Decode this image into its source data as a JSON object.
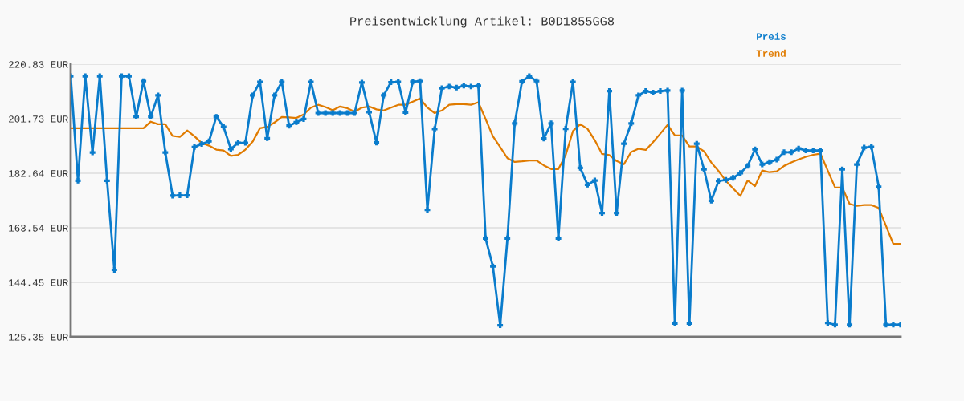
{
  "chart_data": {
    "type": "line",
    "title": "Preisentwicklung Artikel: B0D1855GG8",
    "categories": [
      null,
      null,
      null,
      null,
      null,
      null,
      null,
      null,
      null,
      null,
      null,
      null,
      null,
      null,
      null,
      null,
      null,
      null,
      null,
      null,
      null,
      null,
      null,
      null,
      null,
      null,
      null,
      null,
      null,
      null,
      null,
      null,
      null,
      null,
      null,
      null,
      null,
      null,
      null,
      null,
      null,
      null,
      null,
      null,
      null,
      null,
      null,
      null,
      null,
      null,
      null,
      null,
      null,
      null,
      null,
      null,
      null,
      null,
      null,
      null,
      null,
      null,
      null,
      null,
      null,
      null,
      null,
      null,
      null,
      null,
      null,
      null,
      null,
      null,
      null,
      null,
      null,
      null,
      null,
      null,
      null,
      null,
      null,
      null,
      null,
      null,
      null,
      null,
      null,
      null,
      null,
      null,
      null,
      null,
      null,
      null,
      null,
      null,
      null,
      null,
      null,
      null,
      null,
      null,
      null,
      null,
      null,
      null,
      null,
      null,
      null,
      null,
      null,
      null,
      null
    ],
    "series": [
      {
        "name": "Preis",
        "color": "#0a7ccc",
        "marker": "cross",
        "values": [
          216.6,
          180.0,
          216.6,
          189.9,
          216.6,
          180.0,
          148.8,
          216.6,
          216.6,
          202.4,
          214.9,
          202.4,
          209.9,
          189.9,
          174.8,
          174.9,
          174.9,
          191.8,
          192.9,
          193.8,
          202.4,
          198.9,
          191.1,
          193.3,
          193.3,
          209.9,
          214.6,
          194.9,
          209.9,
          214.6,
          199.3,
          200.5,
          201.6,
          214.6,
          203.7,
          203.7,
          203.7,
          203.7,
          203.7,
          203.7,
          214.4,
          204.0,
          193.4,
          209.9,
          214.5,
          214.6,
          203.9,
          214.7,
          214.9,
          169.8,
          198.1,
          212.4,
          213.0,
          212.6,
          213.3,
          213.0,
          213.3,
          159.8,
          150.0,
          129.4,
          159.8,
          200.1,
          214.8,
          216.6,
          214.9,
          194.8,
          200.1,
          159.8,
          198.2,
          214.6,
          184.5,
          178.6,
          180.1,
          168.7,
          211.4,
          168.7,
          193.0,
          200.1,
          209.9,
          211.4,
          210.9,
          211.4,
          211.6,
          130.0,
          211.6,
          130.0,
          193.0,
          184.0,
          173.0,
          179.9,
          180.3,
          181.0,
          182.7,
          185.2,
          191.0,
          185.7,
          186.5,
          187.4,
          190.0,
          190.0,
          191.3,
          190.6,
          190.6,
          190.6,
          130.2,
          129.6,
          184.0,
          129.6,
          185.7,
          191.6,
          191.9,
          177.9,
          129.6,
          129.6,
          129.6
        ]
      },
      {
        "name": "Trend",
        "color": "#e07b00",
        "marker": "none",
        "values": [
          198.4,
          198.4,
          198.4,
          198.4,
          198.4,
          198.4,
          198.4,
          198.4,
          198.4,
          198.4,
          198.4,
          200.7,
          199.8,
          199.8,
          195.7,
          195.4,
          197.6,
          195.6,
          193.2,
          192.3,
          190.9,
          190.6,
          188.7,
          189.1,
          190.9,
          193.7,
          198.4,
          198.9,
          200.4,
          202.3,
          202.2,
          202.0,
          203.2,
          205.6,
          206.6,
          205.8,
          204.7,
          206.0,
          205.4,
          204.2,
          205.6,
          206.0,
          205.0,
          204.6,
          205.6,
          206.6,
          206.6,
          207.7,
          208.8,
          205.6,
          203.7,
          204.6,
          206.6,
          206.8,
          206.8,
          206.6,
          207.5,
          201.6,
          195.6,
          191.8,
          187.9,
          186.6,
          186.8,
          187.1,
          187.1,
          185.4,
          184.1,
          184.1,
          189.0,
          197.4,
          199.8,
          198.2,
          194.2,
          189.4,
          189.0,
          186.9,
          185.8,
          190.1,
          191.2,
          190.8,
          193.5,
          196.5,
          199.6,
          195.9,
          195.9,
          192.0,
          192.0,
          190.3,
          186.4,
          183.4,
          180.0,
          177.3,
          174.7,
          180.1,
          178.1,
          183.6,
          183.0,
          183.3,
          185.2,
          186.4,
          187.5,
          188.4,
          189.1,
          189.5,
          183.6,
          177.7,
          177.6,
          171.9,
          171.2,
          171.5,
          171.5,
          170.5,
          164.2,
          157.9,
          157.9
        ]
      }
    ],
    "ylim": [
      125.35,
      220.83
    ],
    "yticks": [
      {
        "value": 125.35,
        "label": "125.35 EUR"
      },
      {
        "value": 144.45,
        "label": "144.45 EUR"
      },
      {
        "value": 163.54,
        "label": "163.54 EUR"
      },
      {
        "value": 182.64,
        "label": "182.64 EUR"
      },
      {
        "value": 201.73,
        "label": "201.73 EUR"
      },
      {
        "value": 220.83,
        "label": "220.83 EUR"
      }
    ],
    "grid": "y",
    "legend": "top right",
    "line_style": "solid"
  }
}
